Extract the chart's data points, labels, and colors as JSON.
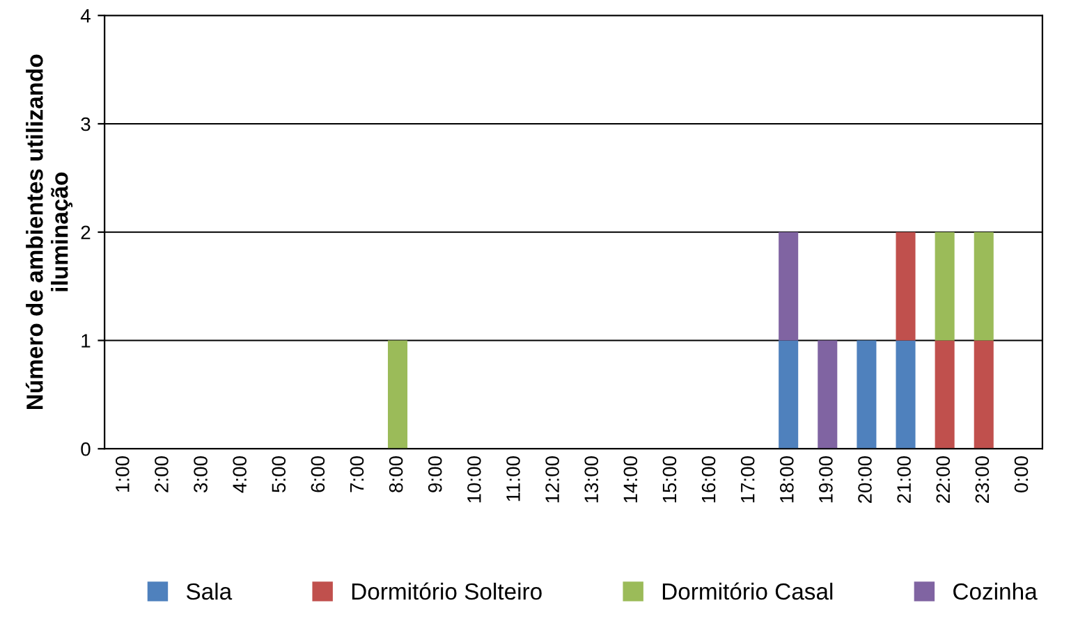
{
  "chart_data": {
    "type": "bar",
    "stacked": true,
    "ylabel": "Número de ambientes utilizando\niluminação",
    "categories": [
      "1:00",
      "2:00",
      "3:00",
      "4:00",
      "5:00",
      "6:00",
      "7:00",
      "8:00",
      "9:00",
      "10:00",
      "11:00",
      "12:00",
      "13:00",
      "14:00",
      "15:00",
      "16:00",
      "17:00",
      "18:00",
      "19:00",
      "20:00",
      "21:00",
      "22:00",
      "23:00",
      "0:00"
    ],
    "series": [
      {
        "name": "Sala",
        "color": "#4f81bd",
        "values": [
          0,
          0,
          0,
          0,
          0,
          0,
          0,
          0,
          0,
          0,
          0,
          0,
          0,
          0,
          0,
          0,
          0,
          1,
          0,
          1,
          1,
          0,
          0,
          0
        ]
      },
      {
        "name": "Dormitório Solteiro",
        "color": "#c0504d",
        "values": [
          0,
          0,
          0,
          0,
          0,
          0,
          0,
          0,
          0,
          0,
          0,
          0,
          0,
          0,
          0,
          0,
          0,
          0,
          0,
          0,
          1,
          1,
          1,
          0
        ]
      },
      {
        "name": "Dormitório Casal",
        "color": "#9bbb59",
        "values": [
          0,
          0,
          0,
          0,
          0,
          0,
          0,
          1,
          0,
          0,
          0,
          0,
          0,
          0,
          0,
          0,
          0,
          0,
          0,
          0,
          0,
          1,
          1,
          0
        ]
      },
      {
        "name": "Cozinha",
        "color": "#8064a2",
        "values": [
          0,
          0,
          0,
          0,
          0,
          0,
          0,
          0,
          0,
          0,
          0,
          0,
          0,
          0,
          0,
          0,
          0,
          1,
          1,
          0,
          0,
          0,
          0,
          0
        ]
      }
    ],
    "ylim": [
      0,
      4
    ],
    "yticks": [
      0,
      1,
      2,
      3,
      4
    ],
    "grid": "y",
    "legend": "bottom"
  }
}
